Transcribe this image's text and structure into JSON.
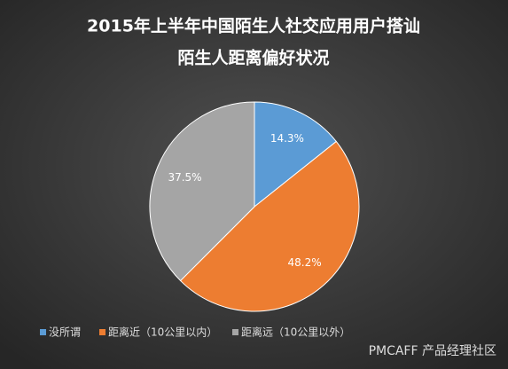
{
  "chart_data": {
    "type": "pie",
    "title": [
      "2015年上半年中国陌生人社交应用用户搭讪",
      "陌生人距离偏好状况"
    ],
    "categories": [
      "没所谓",
      "距离近（10公里以内）",
      "距离远（10公里以外）"
    ],
    "values": [
      14.3,
      48.2,
      37.5
    ],
    "value_labels": [
      "14.3%",
      "48.2%",
      "37.5%"
    ],
    "colors": [
      "#5b9bd5",
      "#ed7d31",
      "#a5a5a5"
    ],
    "legend": "bottom",
    "watermark": "PMCAFF 产品经理社区"
  }
}
